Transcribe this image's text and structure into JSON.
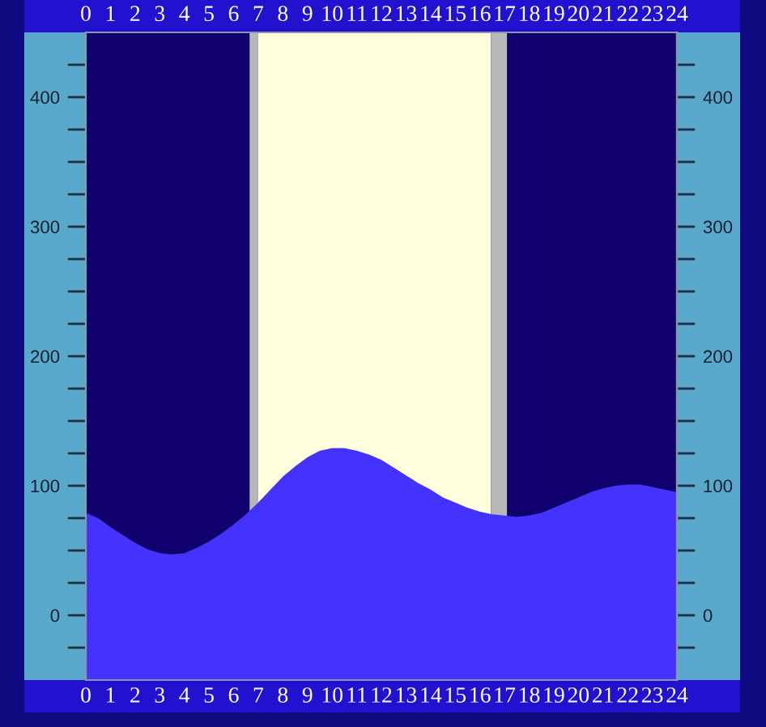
{
  "chart_data": {
    "type": "area",
    "x": [
      0,
      0.5,
      1,
      1.5,
      2,
      2.5,
      3,
      3.5,
      4,
      4.5,
      5,
      5.5,
      6,
      6.5,
      7,
      7.5,
      8,
      8.5,
      9,
      9.5,
      10,
      10.5,
      11,
      11.5,
      12,
      12.5,
      13,
      13.5,
      14,
      14.5,
      15,
      15.5,
      16,
      16.5,
      17,
      17.5,
      18,
      18.5,
      19,
      19.5,
      20,
      20.5,
      21,
      21.5,
      22,
      22.5,
      23,
      23.5,
      24
    ],
    "series": [
      {
        "color": "#4433ff",
        "values": [
          79,
          75,
          68,
          62,
          56,
          51,
          48,
          47,
          48,
          52,
          57,
          63,
          70,
          78,
          87,
          97,
          107,
          115,
          122,
          127,
          129,
          129,
          127,
          124,
          120,
          114,
          108,
          102,
          97,
          91,
          87,
          83,
          80,
          78,
          77,
          76,
          77,
          79,
          83,
          87,
          91,
          95,
          98,
          100,
          101,
          101,
          99,
          97,
          95
        ]
      }
    ],
    "xlim": [
      0,
      24
    ],
    "xticks": [
      0,
      1,
      2,
      3,
      4,
      5,
      6,
      7,
      8,
      9,
      10,
      11,
      12,
      13,
      14,
      15,
      16,
      17,
      18,
      19,
      20,
      21,
      22,
      23,
      24
    ],
    "x2lim": [
      0,
      24
    ],
    "x2ticks": [
      0,
      1,
      2,
      3,
      4,
      5,
      6,
      7,
      8,
      9,
      10,
      11,
      12,
      13,
      14,
      15,
      16,
      17,
      18,
      19,
      20,
      21,
      22,
      23,
      24
    ],
    "ylim": [
      -50,
      450
    ],
    "yticks": [
      {
        "value": -25,
        "label": null
      },
      0,
      {
        "value": 25,
        "label": null
      },
      {
        "value": 50,
        "label": null
      },
      {
        "value": 75,
        "label": null
      },
      100,
      {
        "value": 125,
        "label": null
      },
      {
        "value": 150,
        "label": null
      },
      {
        "value": 175,
        "label": null
      },
      200,
      {
        "value": 225,
        "label": null
      },
      {
        "value": 250,
        "label": null
      },
      {
        "value": 275,
        "label": null
      },
      300,
      {
        "value": 325,
        "label": null
      },
      {
        "value": 350,
        "label": null
      },
      {
        "value": 375,
        "label": null
      },
      400,
      {
        "value": 425,
        "label": null
      }
    ],
    "y2lim": [
      -50,
      450
    ],
    "y2ticks": [
      {
        "value": -25,
        "label": null
      },
      0,
      {
        "value": 25,
        "label": null
      },
      {
        "value": 50,
        "label": null
      },
      {
        "value": 75,
        "label": null
      },
      100,
      {
        "value": 125,
        "label": null
      },
      {
        "value": 150,
        "label": null
      },
      {
        "value": 175,
        "label": null
      },
      200,
      {
        "value": 225,
        "label": null
      },
      {
        "value": 250,
        "label": null
      },
      {
        "value": 275,
        "label": null
      },
      300,
      {
        "value": 325,
        "label": null
      },
      {
        "value": 350,
        "label": null
      },
      {
        "value": 375,
        "label": null
      },
      400,
      {
        "value": 425,
        "label": null
      }
    ],
    "bands": [
      {
        "axis": "x",
        "from": 6.65,
        "to": 7.0,
        "color": "#b8b8b8"
      },
      {
        "axis": "x",
        "from": 7.0,
        "to": 16.45,
        "color": "#ffffdd"
      },
      {
        "axis": "x",
        "from": 16.45,
        "to": 17.1,
        "color": "#b8b8b8"
      }
    ],
    "grid": false
  }
}
